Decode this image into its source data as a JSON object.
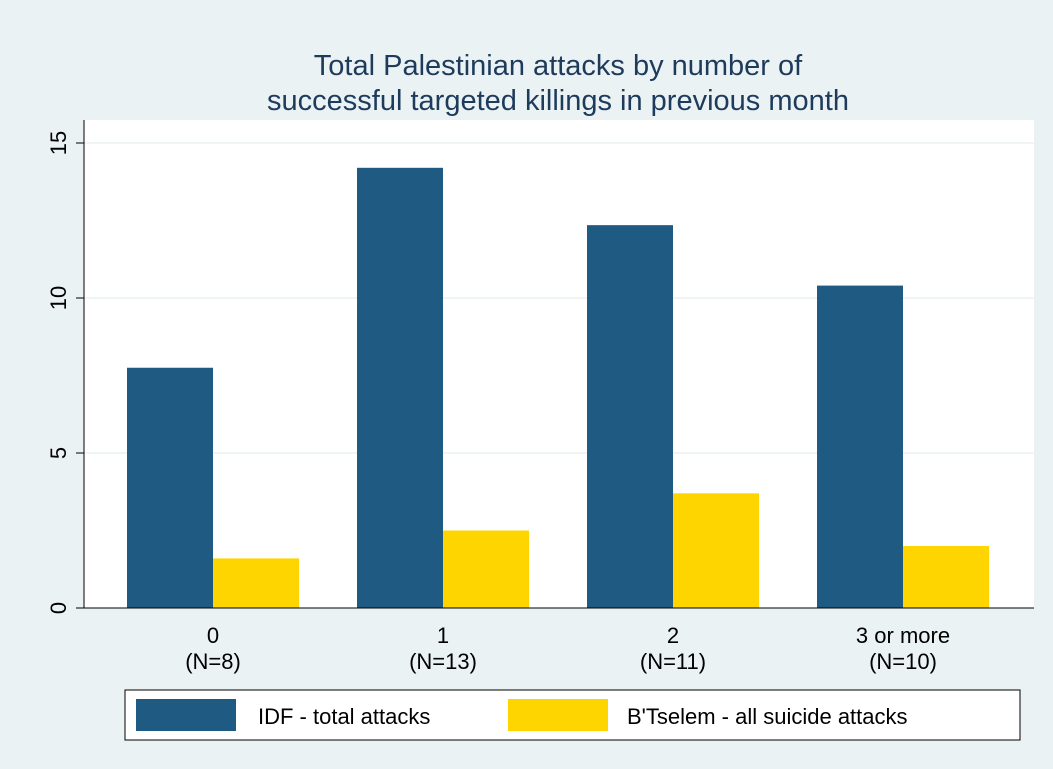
{
  "chart_data": {
    "type": "bar",
    "title": "Total Palestinian attacks by number of successful targeted killings in previous month",
    "title_lines": [
      "Total Palestinian attacks by number of",
      "successful targeted killings in previous month"
    ],
    "categories": [
      "0",
      "1",
      "2",
      "3 or more"
    ],
    "category_sublabels": [
      "(N=8)",
      "(N=13)",
      "(N=11)",
      "(N=10)"
    ],
    "series": [
      {
        "name": "IDF - total attacks",
        "color": "#1f5a83",
        "values": [
          7.75,
          14.2,
          12.35,
          10.4
        ]
      },
      {
        "name": "B'Tselem - all suicide attacks",
        "color": "#ffd500",
        "values": [
          1.6,
          2.5,
          3.7,
          2.0
        ]
      }
    ],
    "ylim": [
      0,
      15
    ],
    "yticks": [
      0,
      5,
      10,
      15
    ],
    "ytick_labels": [
      "0",
      "5",
      "10",
      "15"
    ],
    "xlabel": "",
    "ylabel": "",
    "grid": true,
    "legend": "bottom"
  }
}
